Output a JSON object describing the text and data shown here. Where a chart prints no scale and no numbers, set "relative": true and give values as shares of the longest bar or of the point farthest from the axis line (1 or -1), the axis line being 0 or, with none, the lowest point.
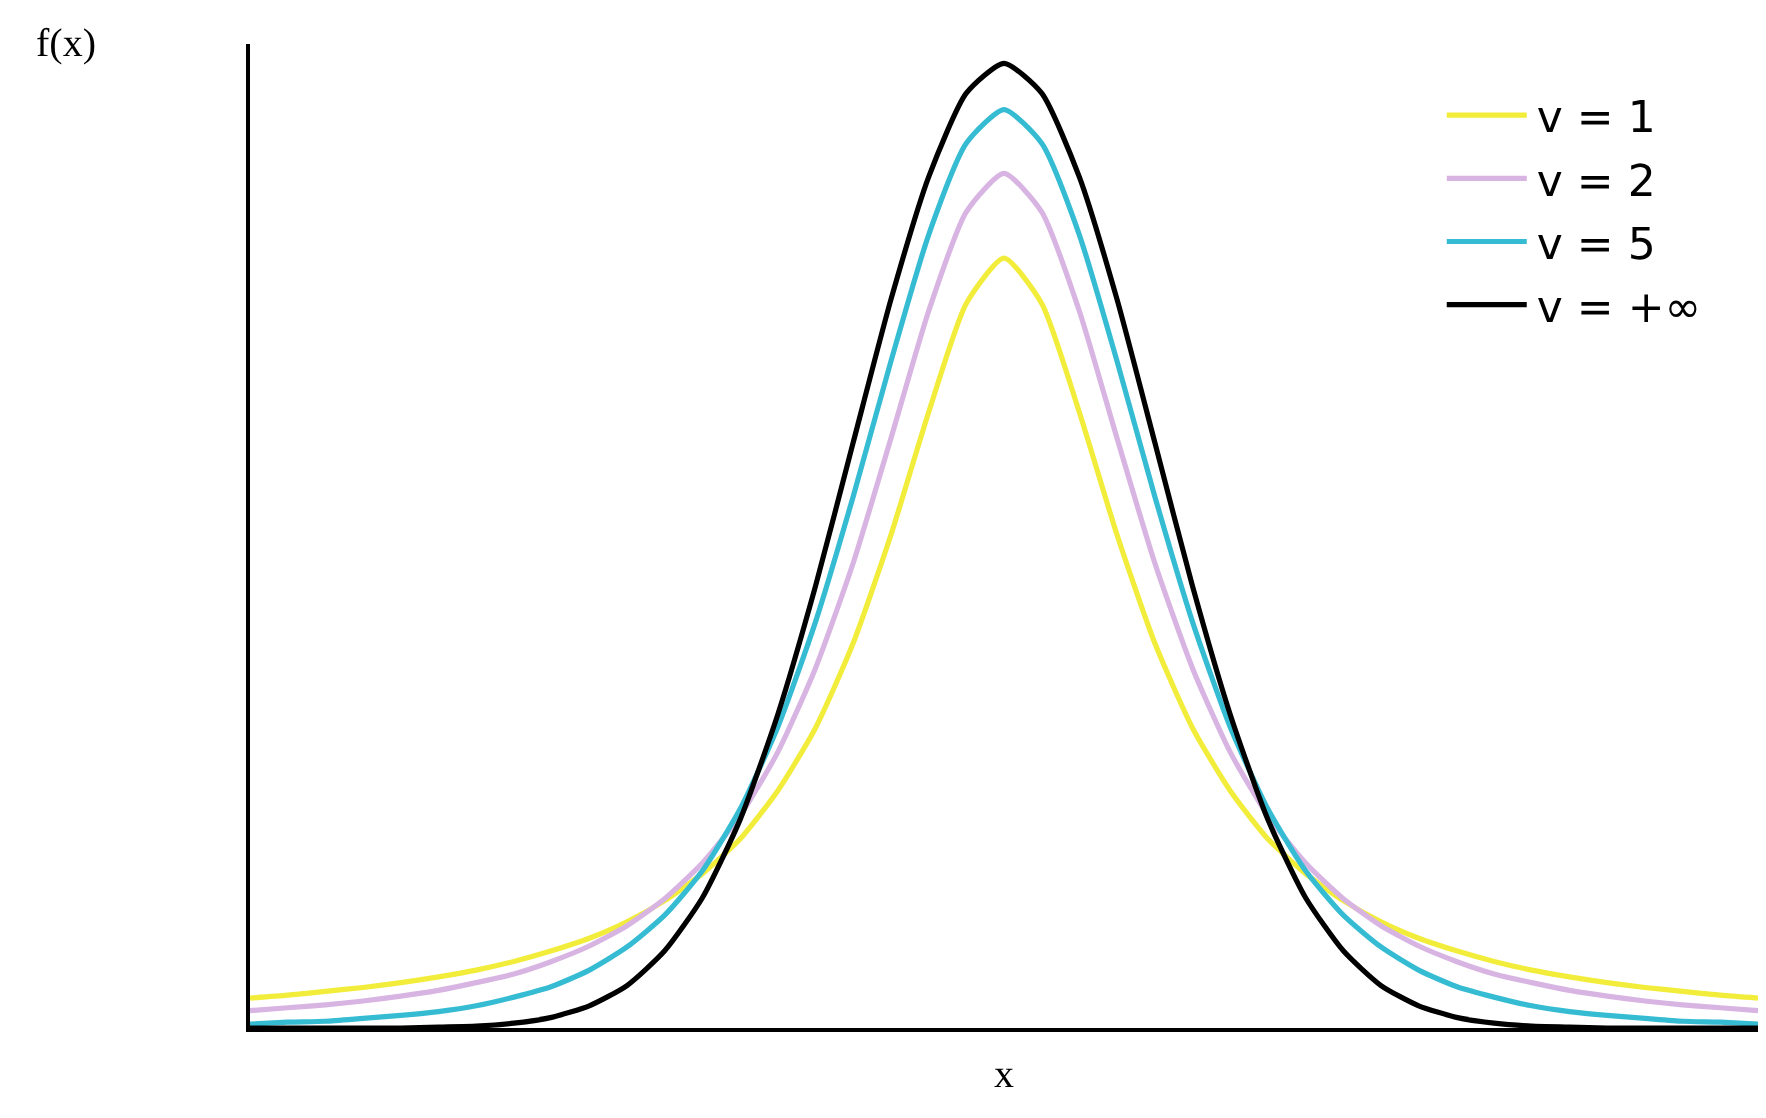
{
  "chart_data": {
    "type": "line",
    "relative": true,
    "xlabel": "x",
    "ylabel": "f(x)",
    "legend": "top right",
    "marker": "none",
    "line_style": "solid",
    "categories": [
      null,
      null,
      null,
      null,
      null,
      null,
      null,
      null,
      null,
      null,
      null,
      null,
      null,
      null,
      null,
      null,
      null,
      null,
      null,
      null,
      null,
      null,
      null,
      null,
      null,
      null,
      null,
      null,
      null,
      null,
      null,
      null,
      null,
      null,
      null,
      null,
      null,
      null,
      null,
      null,
      null
    ],
    "series": [
      {
        "name": "v = 1",
        "color": "#f2ec3a",
        "values": [
          0.031,
          0.034,
          0.038,
          0.042,
          0.047,
          0.053,
          0.06,
          0.069,
          0.08,
          0.093,
          0.11,
          0.132,
          0.16,
          0.196,
          0.246,
          0.311,
          0.399,
          0.511,
          0.638,
          0.751,
          0.798,
          0.751,
          0.638,
          0.511,
          0.399,
          0.311,
          0.246,
          0.196,
          0.16,
          0.132,
          0.11,
          0.093,
          0.08,
          0.069,
          0.06,
          0.053,
          0.047,
          0.042,
          0.038,
          0.034,
          0.031
        ]
      },
      {
        "name": "v = 2",
        "color": "#d8b4e2",
        "values": [
          0.018,
          0.021,
          0.024,
          0.028,
          0.033,
          0.039,
          0.047,
          0.056,
          0.069,
          0.085,
          0.106,
          0.134,
          0.171,
          0.22,
          0.286,
          0.373,
          0.482,
          0.611,
          0.743,
          0.846,
          0.886,
          0.846,
          0.743,
          0.611,
          0.482,
          0.373,
          0.286,
          0.22,
          0.171,
          0.134,
          0.106,
          0.085,
          0.069,
          0.056,
          0.047,
          0.039,
          0.033,
          0.028,
          0.024,
          0.021,
          0.018
        ]
      },
      {
        "name": "v = 5",
        "color": "#36bcd2",
        "values": [
          0.004,
          0.006,
          0.007,
          0.01,
          0.013,
          0.017,
          0.023,
          0.032,
          0.043,
          0.06,
          0.084,
          0.117,
          0.163,
          0.227,
          0.312,
          0.421,
          0.551,
          0.691,
          0.822,
          0.917,
          0.952,
          0.917,
          0.822,
          0.691,
          0.551,
          0.421,
          0.312,
          0.227,
          0.163,
          0.117,
          0.084,
          0.06,
          0.043,
          0.032,
          0.023,
          0.017,
          0.013,
          0.01,
          0.007,
          0.006,
          0.004
        ]
      },
      {
        "name": "v = +∞",
        "color": "#000000",
        "values": [
          0,
          0,
          0,
          0,
          0,
          0.001,
          0.002,
          0.005,
          0.011,
          0.023,
          0.044,
          0.08,
          0.135,
          0.216,
          0.325,
          0.458,
          0.607,
          0.755,
          0.882,
          0.969,
          1,
          0.969,
          0.882,
          0.755,
          0.607,
          0.458,
          0.325,
          0.216,
          0.135,
          0.08,
          0.044,
          0.023,
          0.011,
          0.005,
          0.002,
          0.001,
          0,
          0,
          0,
          0,
          0
        ]
      }
    ]
  }
}
